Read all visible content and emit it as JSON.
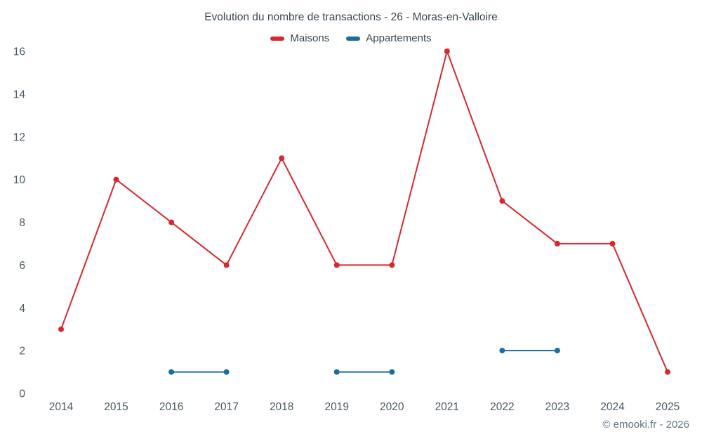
{
  "chart": {
    "title": "Evolution du nombre de transactions - 26 - Moras-en-Valloire",
    "copyright": "© emooki.fr - 2026"
  },
  "chart_data": {
    "type": "line",
    "title": "Evolution du nombre de transactions - 26 - Moras-en-Valloire",
    "categories": [
      2014,
      2015,
      2016,
      2017,
      2018,
      2019,
      2020,
      2021,
      2022,
      2023,
      2024,
      2025
    ],
    "series": [
      {
        "name": "Maisons",
        "color": "#d7282f",
        "values": [
          3,
          10,
          8,
          6,
          11,
          6,
          6,
          16,
          9,
          7,
          7,
          1
        ]
      },
      {
        "name": "Appartements",
        "color": "#1b6d9b",
        "values": [
          null,
          null,
          1,
          1,
          null,
          1,
          1,
          null,
          2,
          2,
          null,
          null
        ]
      }
    ],
    "xlabel": "",
    "ylabel": "",
    "ylim": [
      0,
      16
    ],
    "ytick_step": 2,
    "grid": false,
    "legend_position": "top"
  }
}
